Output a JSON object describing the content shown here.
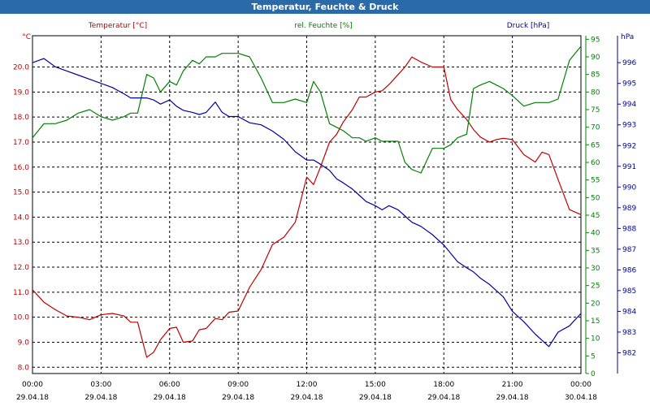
{
  "window": {
    "title": "Temperatur, Feuchte & Druck"
  },
  "colors": {
    "temperature": "#c00000",
    "humidity": "#008000",
    "pressure": "#0000a0",
    "grid": "#000000",
    "titlebar": "#2a6aa8"
  },
  "chart_data": {
    "type": "line",
    "title": "Temperatur, Feuchte & Druck",
    "grid": true,
    "x": {
      "range_hours": [
        0,
        24
      ],
      "ticks": [
        {
          "time": "00:00",
          "date": "29.04.18"
        },
        {
          "time": "03:00",
          "date": "29.04.18"
        },
        {
          "time": "06:00",
          "date": "29.04.18"
        },
        {
          "time": "09:00",
          "date": "29.04.18"
        },
        {
          "time": "12:00",
          "date": "29.04.18"
        },
        {
          "time": "15:00",
          "date": "29.04.18"
        },
        {
          "time": "18:00",
          "date": "29.04.18"
        },
        {
          "time": "21:00",
          "date": "29.04.18"
        },
        {
          "time": "00:00",
          "date": "30.04.18"
        }
      ]
    },
    "axes": {
      "temperature": {
        "label": "Temperatur [°C]",
        "unit": "°C",
        "range": [
          7.75,
          21.25
        ],
        "ticks": [
          "8.0",
          "9.0",
          "10.0",
          "11.0",
          "12.0",
          "13.0",
          "14.0",
          "15.0",
          "16.0",
          "17.0",
          "18.0",
          "19.0",
          "20.0"
        ]
      },
      "humidity": {
        "label": "rel. Feuchte [%]",
        "unit": "%",
        "range": [
          0,
          96
        ],
        "ticks": [
          "0",
          "5",
          "10",
          "15",
          "20",
          "25",
          "30",
          "35",
          "40",
          "45",
          "50",
          "55",
          "60",
          "65",
          "70",
          "75",
          "80",
          "85",
          "90",
          "95"
        ]
      },
      "pressure": {
        "label": "Druck [hPa]",
        "unit": "hPa",
        "range": [
          981.0,
          997.3
        ],
        "ticks": [
          "982",
          "983",
          "984",
          "985",
          "986",
          "987",
          "988",
          "989",
          "990",
          "991",
          "992",
          "993",
          "994",
          "995",
          "996"
        ]
      }
    },
    "series": [
      {
        "name": "Temperatur [°C]",
        "axis": "temperature",
        "color": "#c00000",
        "x": [
          0,
          0.5,
          1,
          1.5,
          2,
          2.5,
          3,
          3.5,
          4,
          4.3,
          4.6,
          5,
          5.3,
          5.6,
          6,
          6.3,
          6.6,
          7,
          7.3,
          7.6,
          8,
          8.3,
          8.6,
          9,
          9.5,
          10,
          10.5,
          11,
          11.5,
          12,
          12.3,
          12.6,
          13,
          13.3,
          13.6,
          14,
          14.3,
          14.6,
          15,
          15.3,
          15.6,
          16,
          16.3,
          16.6,
          17,
          17.5,
          18,
          18.3,
          18.6,
          19,
          19.3,
          19.6,
          20,
          20.3,
          20.6,
          21,
          21.5,
          22,
          22.3,
          22.6,
          23,
          23.5,
          24
        ],
        "y": [
          11.1,
          10.6,
          10.3,
          10.05,
          10.0,
          9.9,
          10.1,
          10.15,
          10.05,
          9.8,
          9.8,
          8.4,
          8.6,
          9.1,
          9.55,
          9.6,
          9.0,
          9.05,
          9.5,
          9.55,
          9.95,
          9.9,
          10.2,
          10.25,
          11.2,
          11.9,
          12.9,
          13.2,
          13.8,
          15.6,
          15.3,
          16.0,
          17.0,
          17.3,
          17.8,
          18.3,
          18.8,
          18.8,
          19.0,
          19.05,
          19.3,
          19.7,
          20.0,
          20.4,
          20.2,
          20.0,
          20.0,
          18.7,
          18.3,
          17.9,
          17.5,
          17.2,
          17.0,
          17.1,
          17.15,
          17.1,
          16.5,
          16.2,
          16.6,
          16.5,
          15.5,
          14.3,
          14.1
        ]
      },
      {
        "name": "rel. Feuchte [%]",
        "axis": "humidity",
        "color": "#008000",
        "x": [
          0,
          0.5,
          1,
          1.5,
          2,
          2.5,
          3,
          3.5,
          4,
          4.3,
          4.6,
          5,
          5.3,
          5.6,
          6,
          6.3,
          6.6,
          7,
          7.3,
          7.6,
          8,
          8.3,
          8.6,
          9,
          9.5,
          10,
          10.5,
          11,
          11.5,
          12,
          12.3,
          12.6,
          13,
          13.3,
          13.6,
          14,
          14.3,
          14.6,
          15,
          15.3,
          15.6,
          16,
          16.3,
          16.6,
          17,
          17.5,
          18,
          18.3,
          18.6,
          19,
          19.3,
          19.6,
          20,
          20.3,
          20.6,
          21,
          21.5,
          22,
          22.3,
          22.6,
          23,
          23.5,
          24
        ],
        "y": [
          67,
          71,
          71,
          72,
          74,
          75,
          73,
          72,
          73,
          74,
          74,
          85,
          84,
          80,
          83,
          82,
          86,
          89,
          88,
          90,
          90,
          91,
          91,
          91,
          90,
          84,
          77,
          77,
          78,
          77,
          83,
          80,
          71,
          70,
          69,
          67,
          67,
          66,
          67,
          66,
          66,
          66,
          60,
          58,
          57,
          64,
          64,
          65,
          67,
          68,
          81,
          82,
          83,
          82,
          81,
          79,
          76,
          77,
          77,
          77,
          78,
          89,
          93
        ]
      },
      {
        "name": "Druck [hPa]",
        "axis": "pressure",
        "color": "#0000a0",
        "x": [
          0,
          0.5,
          1,
          1.5,
          2,
          2.5,
          3,
          3.5,
          4,
          4.3,
          4.6,
          5,
          5.3,
          5.6,
          6,
          6.3,
          6.6,
          7,
          7.3,
          7.6,
          8,
          8.3,
          8.6,
          9,
          9.5,
          10,
          10.5,
          11,
          11.5,
          12,
          12.3,
          12.6,
          13,
          13.3,
          13.6,
          14,
          14.3,
          14.6,
          15,
          15.3,
          15.6,
          16,
          16.3,
          16.6,
          17,
          17.5,
          18,
          18.3,
          18.6,
          19,
          19.3,
          19.6,
          20,
          20.3,
          20.6,
          21,
          21.5,
          22,
          22.3,
          22.6,
          23,
          23.5,
          24
        ],
        "y": [
          996.0,
          996.2,
          995.8,
          995.6,
          995.4,
          995.2,
          995.0,
          994.8,
          994.5,
          994.3,
          994.3,
          994.3,
          994.2,
          994.0,
          994.2,
          993.9,
          993.7,
          993.6,
          993.5,
          993.6,
          994.1,
          993.6,
          993.4,
          993.4,
          993.1,
          993.0,
          992.7,
          992.3,
          991.7,
          991.3,
          991.3,
          991.1,
          990.8,
          990.4,
          990.2,
          989.9,
          989.6,
          989.3,
          989.1,
          988.9,
          989.1,
          988.9,
          988.6,
          988.3,
          988.1,
          987.7,
          987.2,
          986.8,
          986.4,
          986.1,
          985.9,
          985.6,
          985.3,
          985.0,
          984.7,
          984.0,
          983.5,
          982.9,
          982.6,
          982.3,
          983.0,
          983.3,
          983.9
        ]
      }
    ]
  }
}
